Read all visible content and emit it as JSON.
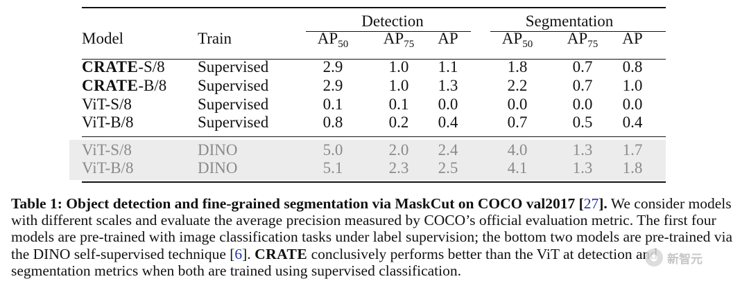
{
  "table": {
    "groups": [
      "Detection",
      "Segmentation"
    ],
    "headers": {
      "model": "Model",
      "train": "Train",
      "metrics": [
        {
          "base": "AP",
          "sub": "50"
        },
        {
          "base": "AP",
          "sub": "75"
        },
        {
          "base": "AP",
          "sub": ""
        },
        {
          "base": "AP",
          "sub": "50"
        },
        {
          "base": "AP",
          "sub": "75"
        },
        {
          "base": "AP",
          "sub": ""
        }
      ]
    },
    "rows": [
      {
        "model_prefix": "CRATE",
        "model_suffix": "-S/8",
        "train": "Supervised",
        "values": [
          "2.9",
          "1.0",
          "1.1",
          "1.8",
          "0.7",
          "0.8"
        ]
      },
      {
        "model_prefix": "CRATE",
        "model_suffix": "-B/8",
        "train": "Supervised",
        "values": [
          "2.9",
          "1.0",
          "1.3",
          "2.2",
          "0.7",
          "1.0"
        ]
      },
      {
        "model_prefix": "",
        "model_suffix": "ViT-S/8",
        "train": "Supervised",
        "values": [
          "0.1",
          "0.1",
          "0.0",
          "0.0",
          "0.0",
          "0.0"
        ]
      },
      {
        "model_prefix": "",
        "model_suffix": "ViT-B/8",
        "train": "Supervised",
        "values": [
          "0.8",
          "0.2",
          "0.4",
          "0.7",
          "0.5",
          "0.4"
        ]
      },
      {
        "model_prefix": "",
        "model_suffix": "ViT-S/8",
        "train": "DINO",
        "values": [
          "5.0",
          "2.0",
          "2.4",
          "4.0",
          "1.3",
          "1.7"
        ]
      },
      {
        "model_prefix": "",
        "model_suffix": "ViT-B/8",
        "train": "DINO",
        "values": [
          "5.1",
          "2.3",
          "2.5",
          "4.1",
          "1.3",
          "1.8"
        ]
      }
    ]
  },
  "caption": {
    "label": "Table 1: Object detection and fine-grained segmentation via MaskCut on COCO val2017 [",
    "ref1": "27",
    "label_end": "].",
    "text1": " We consider models with different scales and evaluate the average precision measured by COCO’s official evaluation metric. The first four models are pre-trained with image classification tasks under label supervision; the bottom two models are pre-trained via the DINO self-supervised technique [",
    "ref2": "6",
    "text2": "]. ",
    "crate": "CRATE",
    "text3": " conclusively performs better than the ViT at detection and segmentation metrics when both are trained using supervised classification."
  },
  "watermark": {
    "text": "新智元"
  }
}
